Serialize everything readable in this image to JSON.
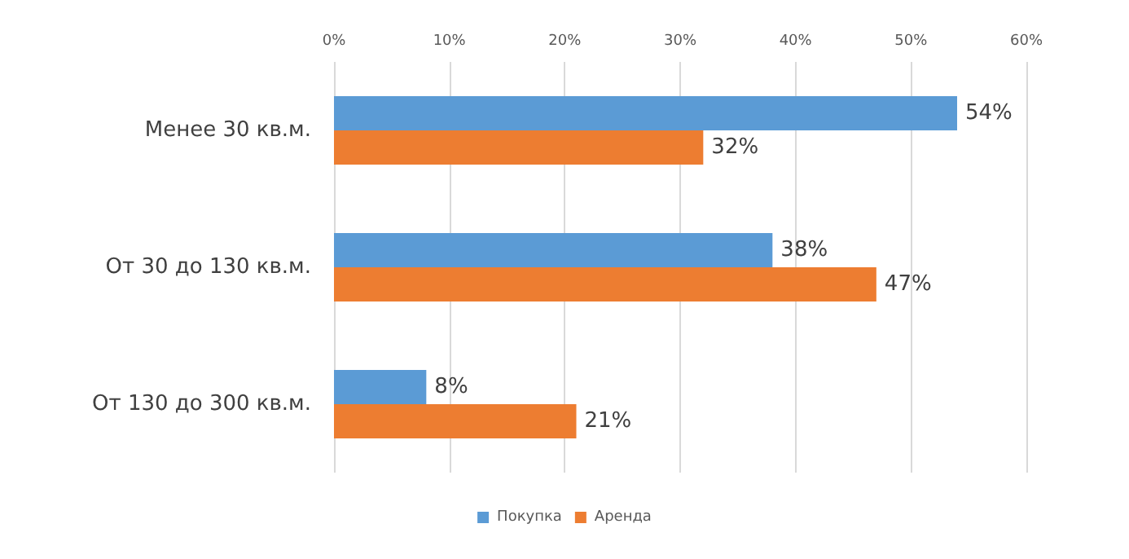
{
  "chart_data": {
    "type": "bar",
    "orientation": "horizontal",
    "categories": [
      "Менее 30 кв.м.",
      "От 30 до 130 кв.м.",
      "От 130 до 300 кв.м."
    ],
    "series": [
      {
        "name": "Покупка",
        "color": "#5b9bd5",
        "values": [
          54,
          38,
          8
        ],
        "value_labels": [
          "54%",
          "38%",
          "8%"
        ]
      },
      {
        "name": "Аренда",
        "color": "#ed7d31",
        "values": [
          32,
          47,
          21
        ],
        "value_labels": [
          "32%",
          "47%",
          "21%"
        ]
      }
    ],
    "xlim": [
      0,
      60
    ],
    "xticks": [
      {
        "value": 0,
        "label": "0%"
      },
      {
        "value": 10,
        "label": "10%"
      },
      {
        "value": 20,
        "label": "20%"
      },
      {
        "value": 30,
        "label": "30%"
      },
      {
        "value": 40,
        "label": "40%"
      },
      {
        "value": 50,
        "label": "50%"
      },
      {
        "value": 60,
        "label": "60%"
      }
    ],
    "grid": "x",
    "legend": "bottom"
  }
}
